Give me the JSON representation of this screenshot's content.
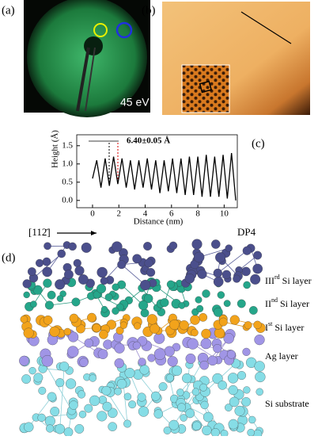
{
  "panels": {
    "a": {
      "label": "(a)",
      "energy": "45 eV"
    },
    "b": {
      "label": "(b)"
    },
    "c": {
      "label": "(c)"
    },
    "d": {
      "label": "(d)",
      "direction": "[112̄]",
      "model": "DP4",
      "layers": [
        {
          "numeral": "III",
          "suffix": "rd",
          "rest": " Si layer"
        },
        {
          "numeral": "II",
          "suffix": "nd",
          "rest": " Si layer"
        },
        {
          "numeral": "I",
          "suffix": "st",
          "rest": " Si layer"
        },
        {
          "numeral": "Ag layer",
          "suffix": "",
          "rest": ""
        },
        {
          "numeral": "Si substrate",
          "suffix": "",
          "rest": ""
        }
      ]
    }
  },
  "chart_data": {
    "type": "line",
    "x_label": "Distance (nm)",
    "y_label": "Height (Å)",
    "annotation": "6.40±0.05  Å",
    "x": [
      0,
      0.32,
      0.64,
      0.96,
      1.28,
      1.6,
      1.92,
      2.24,
      2.56,
      2.88,
      3.2,
      3.52,
      3.84,
      4.16,
      4.48,
      4.8,
      5.12,
      5.44,
      5.76,
      6.08,
      6.4,
      6.72,
      7.04,
      7.36,
      7.68,
      8.0,
      8.32,
      8.64,
      8.96,
      9.28,
      9.6,
      9.92,
      10.24,
      10.56,
      10.88
    ],
    "series": [
      {
        "name": "Height",
        "color": "#000000",
        "values": [
          0.6,
          1.1,
          0.35,
          1.15,
          0.4,
          1.2,
          0.45,
          1.15,
          0.35,
          1.1,
          0.3,
          1.1,
          0.35,
          1.15,
          0.3,
          1.1,
          0.2,
          1.1,
          0.25,
          1.15,
          0.2,
          1.15,
          0.15,
          1.2,
          0.15,
          1.2,
          0.1,
          1.25,
          0.1,
          1.2,
          0.1,
          1.25,
          0.05,
          1.3,
          0.0
        ]
      }
    ],
    "xlim": [
      -1.2,
      11.0
    ],
    "ylim": [
      -0.2,
      1.8
    ],
    "xticks": [
      0,
      2,
      4,
      6,
      8,
      10
    ],
    "yticks": [
      {
        "value": 0,
        "label": "0.0"
      },
      0.5,
      {
        "value": 1,
        "label": "1.0"
      },
      1.5
    ]
  }
}
